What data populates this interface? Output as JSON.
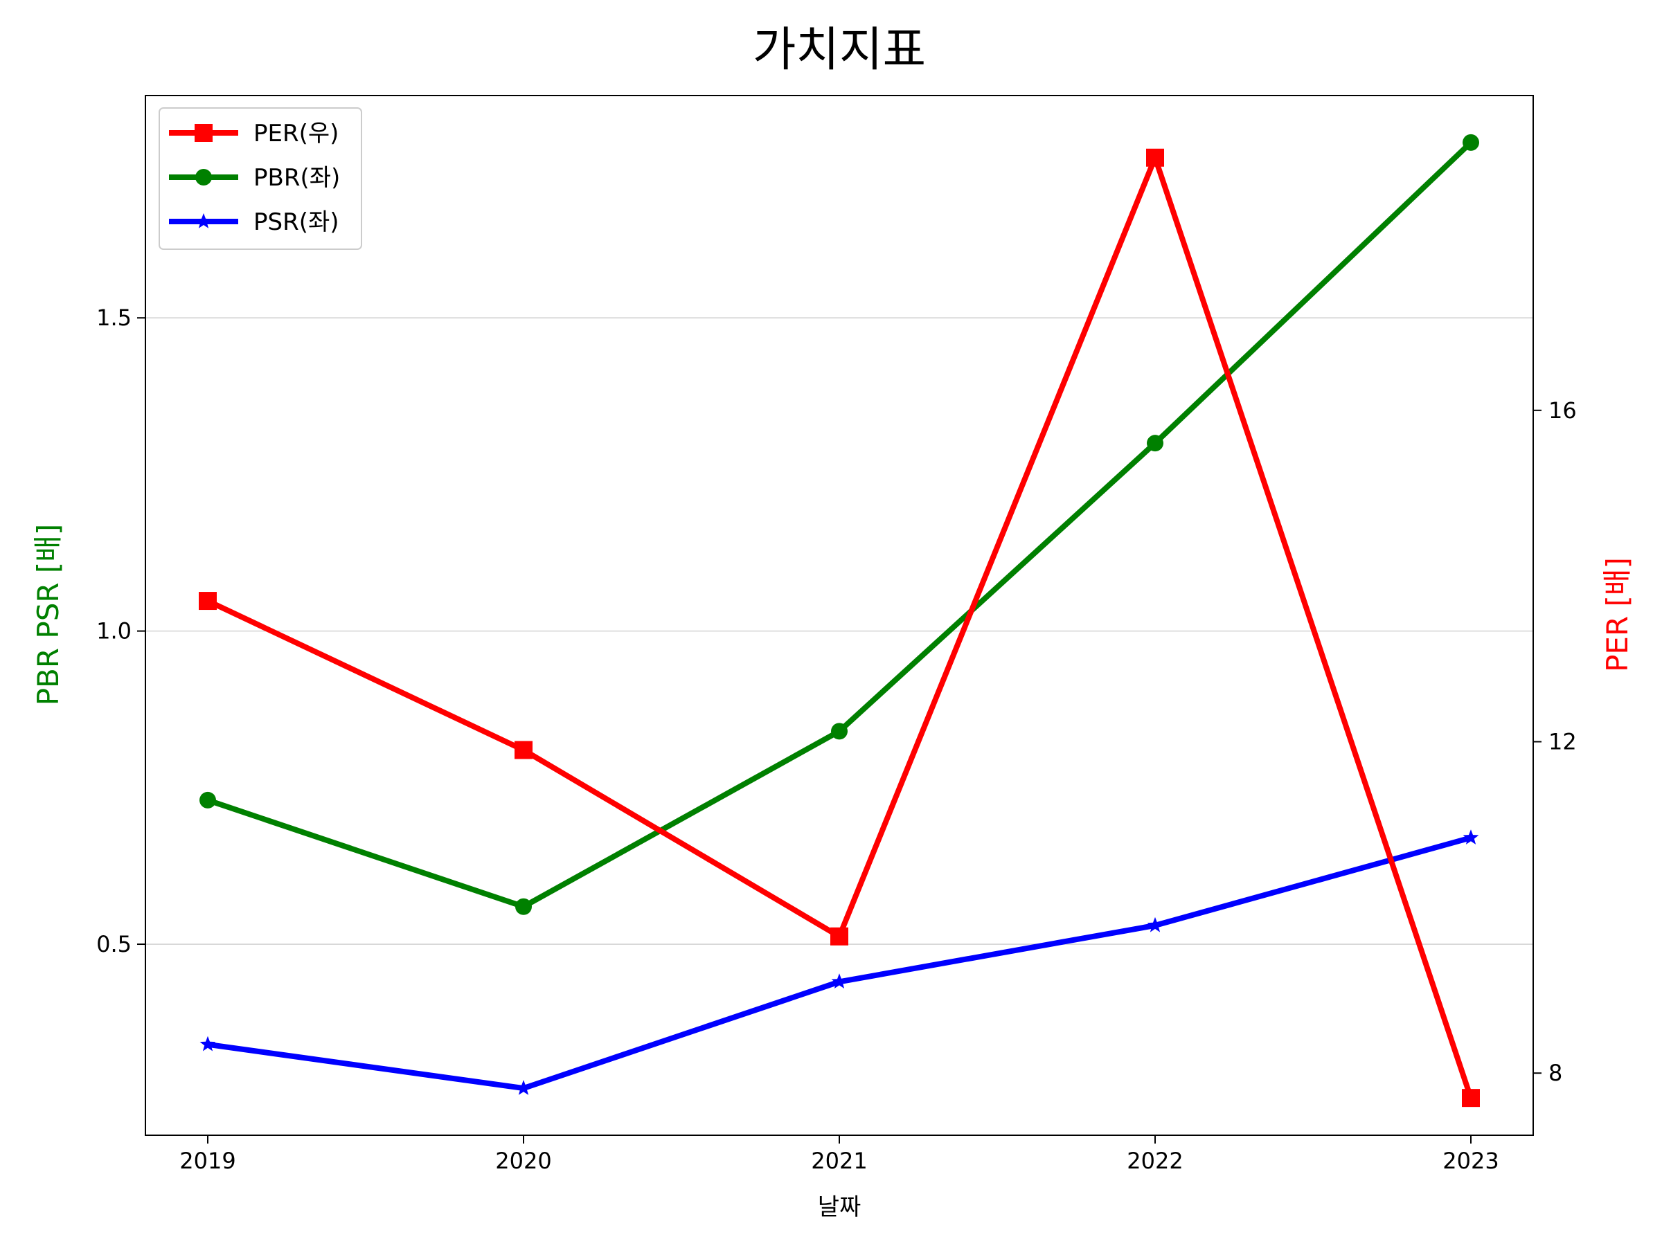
{
  "chart_data": {
    "type": "line",
    "title": "가치지표",
    "xlabel": "날짜",
    "ylabel_left": "PBR PSR [배]",
    "ylabel_right": "PER [배]",
    "categories": [
      "2019",
      "2020",
      "2021",
      "2022",
      "2023"
    ],
    "ylim_left": [
      0.195,
      1.855
    ],
    "ylim_right": [
      7.25,
      19.8
    ],
    "yticks_left": [
      0.5,
      1.0,
      1.5
    ],
    "yticks_right": [
      8,
      12,
      16
    ],
    "yticks_left_labels": [
      "0.5",
      "1.0",
      "1.5"
    ],
    "yticks_right_labels": [
      "8",
      "12",
      "16"
    ],
    "grid": "horizontal",
    "legend_position": "upper-left",
    "series": [
      {
        "name": "PER(우)",
        "axis": "right",
        "marker": "square",
        "color": "#ff0000",
        "values": [
          13.7,
          11.9,
          9.65,
          19.05,
          7.7
        ]
      },
      {
        "name": "PBR(좌)",
        "axis": "left",
        "marker": "circle",
        "color": "#008000",
        "values": [
          0.73,
          0.56,
          0.84,
          1.3,
          1.78
        ]
      },
      {
        "name": "PSR(좌)",
        "axis": "left",
        "marker": "star",
        "color": "#0000ff",
        "values": [
          0.34,
          0.27,
          0.44,
          0.53,
          0.67
        ]
      }
    ]
  }
}
